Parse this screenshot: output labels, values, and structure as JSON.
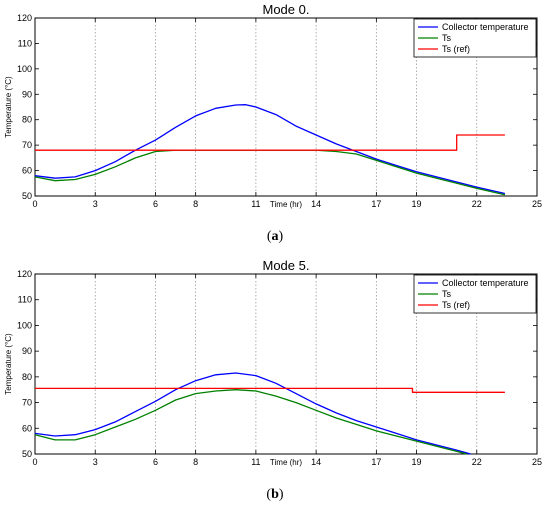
{
  "chart_data": [
    {
      "type": "line",
      "title": "Mode 0.",
      "xlabel": "Time (hr)",
      "ylabel": "Temperature (°C)",
      "caption": "a",
      "xlim": [
        0,
        25
      ],
      "ylim": [
        50,
        120
      ],
      "xticks": [
        0,
        3,
        6,
        8,
        11,
        14,
        17,
        19,
        22,
        25
      ],
      "yticks": [
        50,
        60,
        70,
        80,
        90,
        100,
        110,
        120
      ],
      "grid": "vertical",
      "legend_position": "top-right",
      "series": [
        {
          "name": "Collector temperature",
          "color": "#0000ff",
          "points": [
            [
              0,
              58
            ],
            [
              1,
              57
            ],
            [
              2,
              57.5
            ],
            [
              3,
              60
            ],
            [
              4,
              63.5
            ],
            [
              5,
              68
            ],
            [
              6,
              72
            ],
            [
              7,
              77
            ],
            [
              8,
              81.5
            ],
            [
              9,
              84.5
            ],
            [
              10,
              85.8
            ],
            [
              10.5,
              85.9
            ],
            [
              11,
              85
            ],
            [
              12,
              82
            ],
            [
              13,
              77.5
            ],
            [
              14,
              74
            ],
            [
              15,
              70.5
            ],
            [
              16,
              67.5
            ],
            [
              17,
              64.5
            ],
            [
              18,
              62
            ],
            [
              19,
              59.5
            ],
            [
              20,
              57.5
            ],
            [
              21,
              55.5
            ],
            [
              22,
              53.5
            ],
            [
              23.4,
              51
            ]
          ]
        },
        {
          "name": "Ts",
          "color": "#008000",
          "points": [
            [
              0,
              57.5
            ],
            [
              1,
              56
            ],
            [
              2,
              56.5
            ],
            [
              3,
              58.5
            ],
            [
              4,
              61.5
            ],
            [
              5,
              65
            ],
            [
              6,
              67.5
            ],
            [
              7,
              68
            ],
            [
              8,
              68
            ],
            [
              14,
              68
            ],
            [
              15,
              67.5
            ],
            [
              16,
              66.5
            ],
            [
              17,
              64
            ],
            [
              18,
              61.5
            ],
            [
              19,
              59
            ],
            [
              20,
              57
            ],
            [
              21,
              55
            ],
            [
              22,
              53
            ],
            [
              23.4,
              50.5
            ]
          ]
        },
        {
          "name": "Ts (ref)",
          "color": "#ff0000",
          "points": [
            [
              0,
              68
            ],
            [
              21,
              68
            ],
            [
              21,
              74
            ],
            [
              23.4,
              74
            ]
          ]
        }
      ]
    },
    {
      "type": "line",
      "title": "Mode 5.",
      "xlabel": "Time (hr)",
      "ylabel": "Temperature (°C)",
      "caption": "b",
      "xlim": [
        0,
        25
      ],
      "ylim": [
        50,
        120
      ],
      "xticks": [
        0,
        3,
        6,
        8,
        11,
        14,
        17,
        19,
        22,
        25
      ],
      "yticks": [
        50,
        60,
        70,
        80,
        90,
        100,
        110,
        120
      ],
      "grid": "vertical",
      "legend_position": "top-right",
      "series": [
        {
          "name": "Collector temperature",
          "color": "#0000ff",
          "points": [
            [
              0,
              58
            ],
            [
              1,
              57
            ],
            [
              2,
              57.5
            ],
            [
              3,
              59.5
            ],
            [
              4,
              62.5
            ],
            [
              5,
              66.5
            ],
            [
              6,
              70.5
            ],
            [
              7,
              75
            ],
            [
              8,
              78.5
            ],
            [
              9,
              80.8
            ],
            [
              10,
              81.5
            ],
            [
              11,
              80.5
            ],
            [
              12,
              77.5
            ],
            [
              13,
              73.5
            ],
            [
              14,
              69.5
            ],
            [
              15,
              66
            ],
            [
              16,
              63
            ],
            [
              17,
              60.5
            ],
            [
              18,
              58
            ],
            [
              19,
              55.5
            ],
            [
              20,
              53.5
            ],
            [
              21,
              51.5
            ],
            [
              21.7,
              50
            ]
          ]
        },
        {
          "name": "Ts",
          "color": "#008000",
          "points": [
            [
              0,
              57.5
            ],
            [
              1,
              55.5
            ],
            [
              2,
              55.5
            ],
            [
              3,
              57.5
            ],
            [
              4,
              60.5
            ],
            [
              5,
              63.5
            ],
            [
              6,
              67
            ],
            [
              7,
              71
            ],
            [
              8,
              73.5
            ],
            [
              9,
              74.5
            ],
            [
              10,
              75
            ],
            [
              11,
              74.5
            ],
            [
              12,
              72.5
            ],
            [
              13,
              70
            ],
            [
              14,
              67
            ],
            [
              15,
              64
            ],
            [
              16,
              61.5
            ],
            [
              17,
              59
            ],
            [
              18,
              57
            ],
            [
              19,
              55
            ],
            [
              20,
              53
            ],
            [
              21,
              51
            ],
            [
              21.5,
              50
            ]
          ]
        },
        {
          "name": "Ts (ref)",
          "color": "#ff0000",
          "points": [
            [
              0,
              75.5
            ],
            [
              18.8,
              75.5
            ],
            [
              18.8,
              74
            ],
            [
              23.4,
              74
            ]
          ]
        }
      ]
    }
  ]
}
